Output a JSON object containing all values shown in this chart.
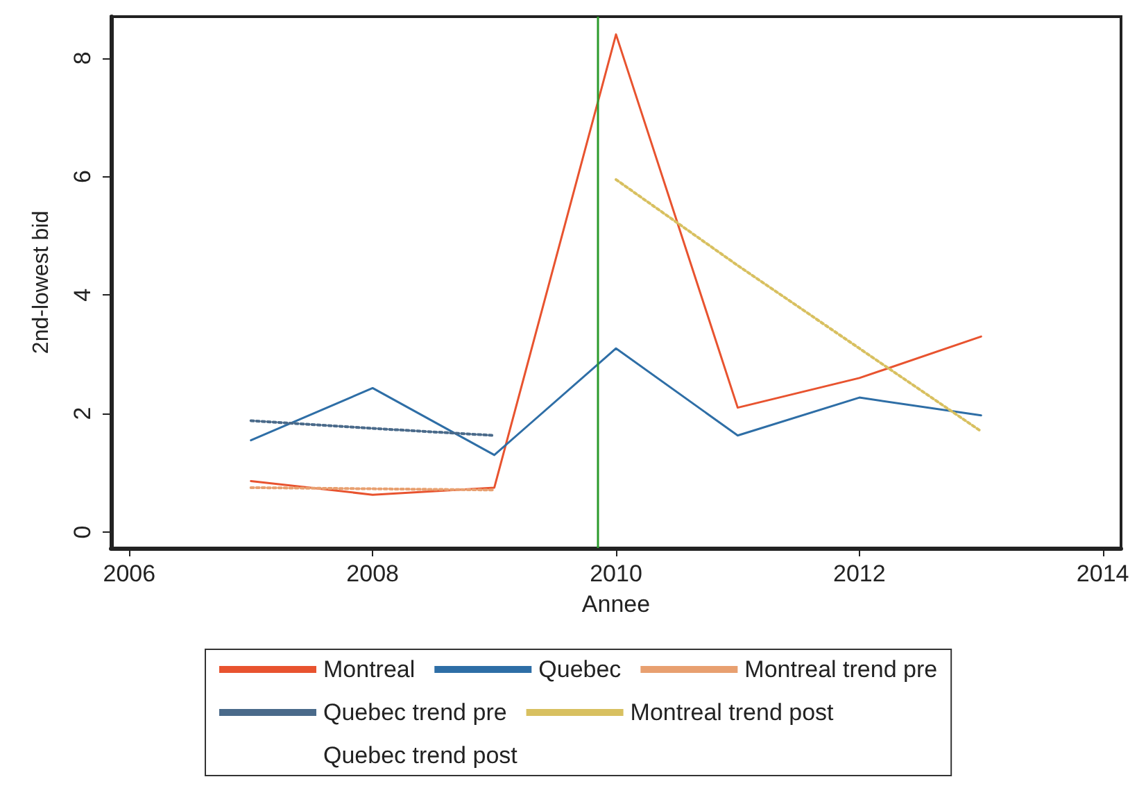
{
  "chart_data": {
    "type": "line",
    "xlabel": "Annee",
    "ylabel": "2nd-lowest bid",
    "x": [
      2007,
      2008,
      2009,
      2010,
      2011,
      2012,
      2013
    ],
    "series": [
      {
        "name": "Montreal",
        "color": "#e8532f",
        "values": [
          0.86,
          0.63,
          0.75,
          8.4,
          2.1,
          2.6,
          3.3
        ]
      },
      {
        "name": "Quebec",
        "color": "#2e6ea6",
        "values": [
          1.55,
          2.43,
          1.3,
          3.1,
          1.63,
          2.27,
          1.97
        ]
      },
      {
        "name": "Montreal trend pre",
        "color": "#e8a070",
        "line_style": "dotted",
        "values": [
          0.75,
          0.73,
          0.71,
          null,
          null,
          null,
          null
        ]
      },
      {
        "name": "Quebec trend pre",
        "color": "#4a6a8a",
        "line_style": "dotted",
        "values": [
          1.88,
          1.75,
          1.63,
          null,
          null,
          null,
          null
        ]
      },
      {
        "name": "Montreal trend post",
        "color": "#d8c060",
        "line_style": "dotted",
        "values": [
          null,
          null,
          null,
          5.95,
          4.5,
          3.1,
          1.7
        ]
      },
      {
        "name": "Quebec trend post",
        "line_style": "dotted",
        "values": [
          null,
          null,
          null,
          null,
          null,
          null,
          null
        ]
      }
    ],
    "xlim": [
      2005.85,
      2014.15
    ],
    "xticks": [
      2006,
      2008,
      2010,
      2012,
      2014
    ],
    "ylim": [
      -0.27,
      8.7
    ],
    "yticks": [
      0,
      2,
      4,
      6,
      8
    ],
    "ref_lines": [
      {
        "axis": "x",
        "value": 2009.85,
        "color": "#2a9a2a"
      }
    ],
    "grid": false,
    "legend": "bottom",
    "marker": "none",
    "line_style": "solid"
  }
}
